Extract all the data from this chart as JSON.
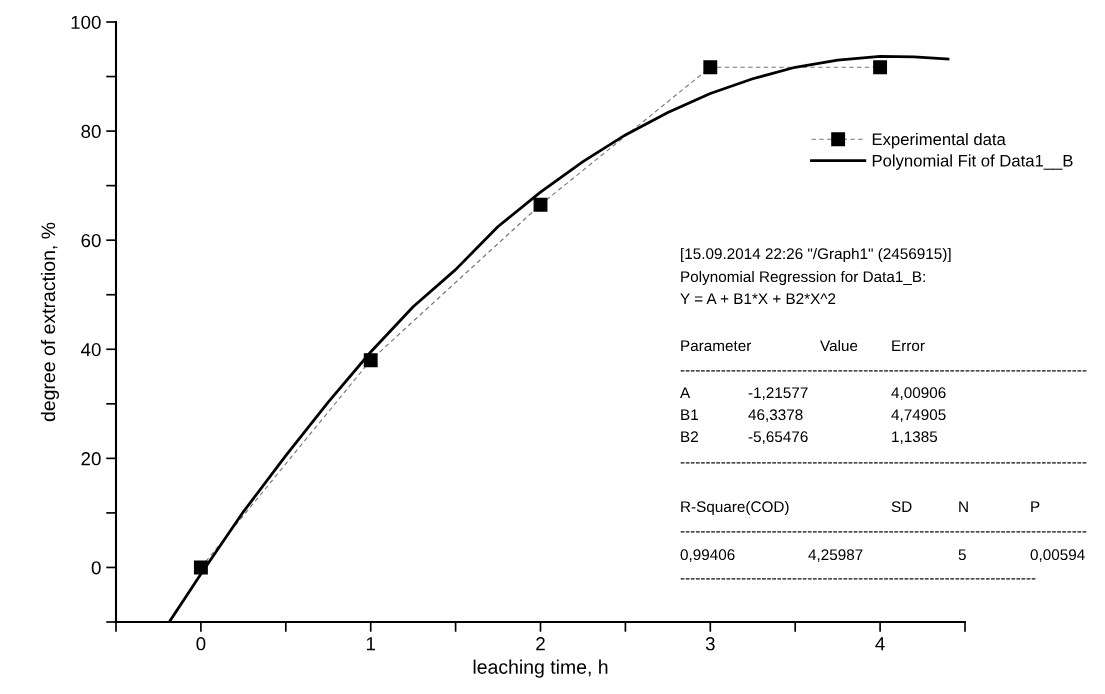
{
  "chart_data": {
    "type": "line",
    "xlabel": "leaching time, h",
    "ylabel": "degree of extraction, %",
    "xlim": [
      -0.5,
      4.5
    ],
    "ylim": [
      -10,
      100
    ],
    "xticks": [
      {
        "value": -0.5,
        "label": null
      },
      0,
      {
        "value": 0.5,
        "label": null
      },
      1,
      {
        "value": 1.5,
        "label": null
      },
      2,
      {
        "value": 2.5,
        "label": null
      },
      3,
      {
        "value": 3.5,
        "label": null
      },
      4,
      {
        "value": 4.5,
        "label": null
      }
    ],
    "yticks": [
      {
        "value": -10,
        "label": null
      },
      0,
      {
        "value": 10,
        "label": null
      },
      20,
      {
        "value": 30,
        "label": null
      },
      40,
      {
        "value": 50,
        "label": null
      },
      60,
      {
        "value": 70,
        "label": null
      },
      80,
      {
        "value": 90,
        "label": null
      },
      100
    ],
    "grid": false,
    "legend": "top right",
    "series": [
      {
        "name": "Experimental data",
        "color": "#000000",
        "marker": "square",
        "line_style": "dashed",
        "x": [
          0,
          1,
          2,
          3,
          4
        ],
        "values": [
          0,
          38,
          66.5,
          91.7,
          91.7
        ]
      },
      {
        "name": "Polynomial Fit of Data1__B",
        "color": "#000000",
        "marker": "none",
        "line_style": "solid",
        "x": [
          -0.18,
          0,
          0.25,
          0.5,
          0.75,
          1,
          1.25,
          1.5,
          1.75,
          2,
          2.25,
          2.5,
          2.75,
          3,
          3.25,
          3.5,
          3.75,
          4,
          4.2,
          4.4
        ],
        "values": [
          -9.7,
          -1.2,
          10.2,
          20.5,
          30.3,
          39.5,
          47.8,
          54.6,
          62.5,
          68.8,
          74.4,
          79.3,
          83.4,
          86.9,
          89.6,
          91.7,
          93.0,
          93.7,
          93.6,
          93.2
        ]
      }
    ],
    "annotations": [
      "[15.09.2014 22:26 \"/Graph1\" (2456915)]",
      "Polynomial Regression for Data1_B:",
      "Y = A + B1*X + B2*X^2",
      "Parameter",
      "Value",
      "Error",
      "--------------------------------------------------------------------------------",
      "A",
      "-1,21577",
      "4,00906",
      "B1",
      "46,3378",
      "4,74905",
      "B2",
      "-5,65476",
      "1,1385",
      "--------------------------------------------------------------------------------",
      "R-Square(COD)",
      "SD",
      "N",
      "P",
      "--------------------------------------------------------------------------------",
      "0,99406",
      "4,25987",
      "5",
      "0,00594",
      "----------------------------------------------------------------------"
    ]
  }
}
